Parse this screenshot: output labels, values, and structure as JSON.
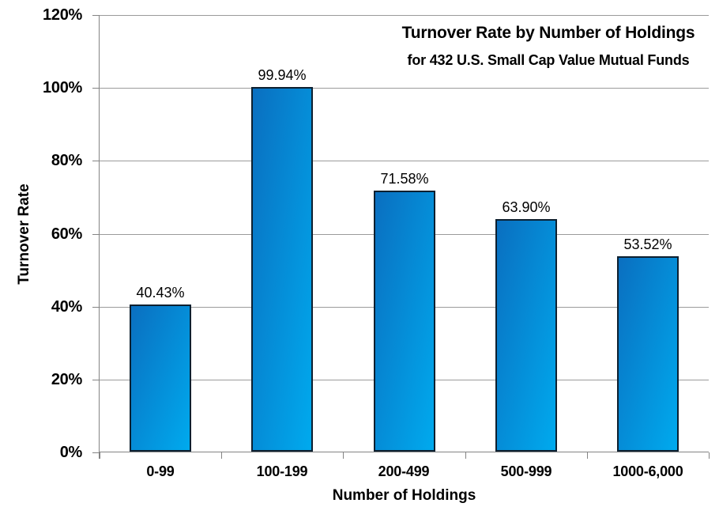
{
  "chart": {
    "title": "Turnover Rate by Number of Holdings",
    "subtitle": "for 432 U.S. Small Cap Value Mutual Funds",
    "y_axis_title": "Turnover Rate",
    "x_axis_title": "Number of Holdings"
  },
  "chart_data": {
    "type": "bar",
    "title": "Turnover Rate by Number of Holdings",
    "subtitle": "for 432 U.S. Small Cap Value Mutual Funds",
    "xlabel": "Number of Holdings",
    "ylabel": "Turnover Rate",
    "categories": [
      "0-99",
      "100-199",
      "200-499",
      "500-999",
      "1000-6,000"
    ],
    "values": [
      40.43,
      99.94,
      71.58,
      63.9,
      53.52
    ],
    "data_labels": [
      "40.43%",
      "99.94%",
      "71.58%",
      "63.90%",
      "53.52%"
    ],
    "y_tick_values": [
      0,
      20,
      40,
      60,
      80,
      100,
      120
    ],
    "y_tick_labels": [
      "0%",
      "20%",
      "40%",
      "60%",
      "80%",
      "100%",
      "120%"
    ],
    "ylim": [
      0,
      120
    ],
    "grid": true,
    "legend": false,
    "colors": {
      "background": "#ffffff",
      "text": "#000000",
      "gridline": "#9b9b9b",
      "axis_line": "#848484",
      "bar_gradient_start": "#0a6fc0",
      "bar_gradient_end": "#00aaee",
      "bar_border": "#0d2030"
    }
  }
}
